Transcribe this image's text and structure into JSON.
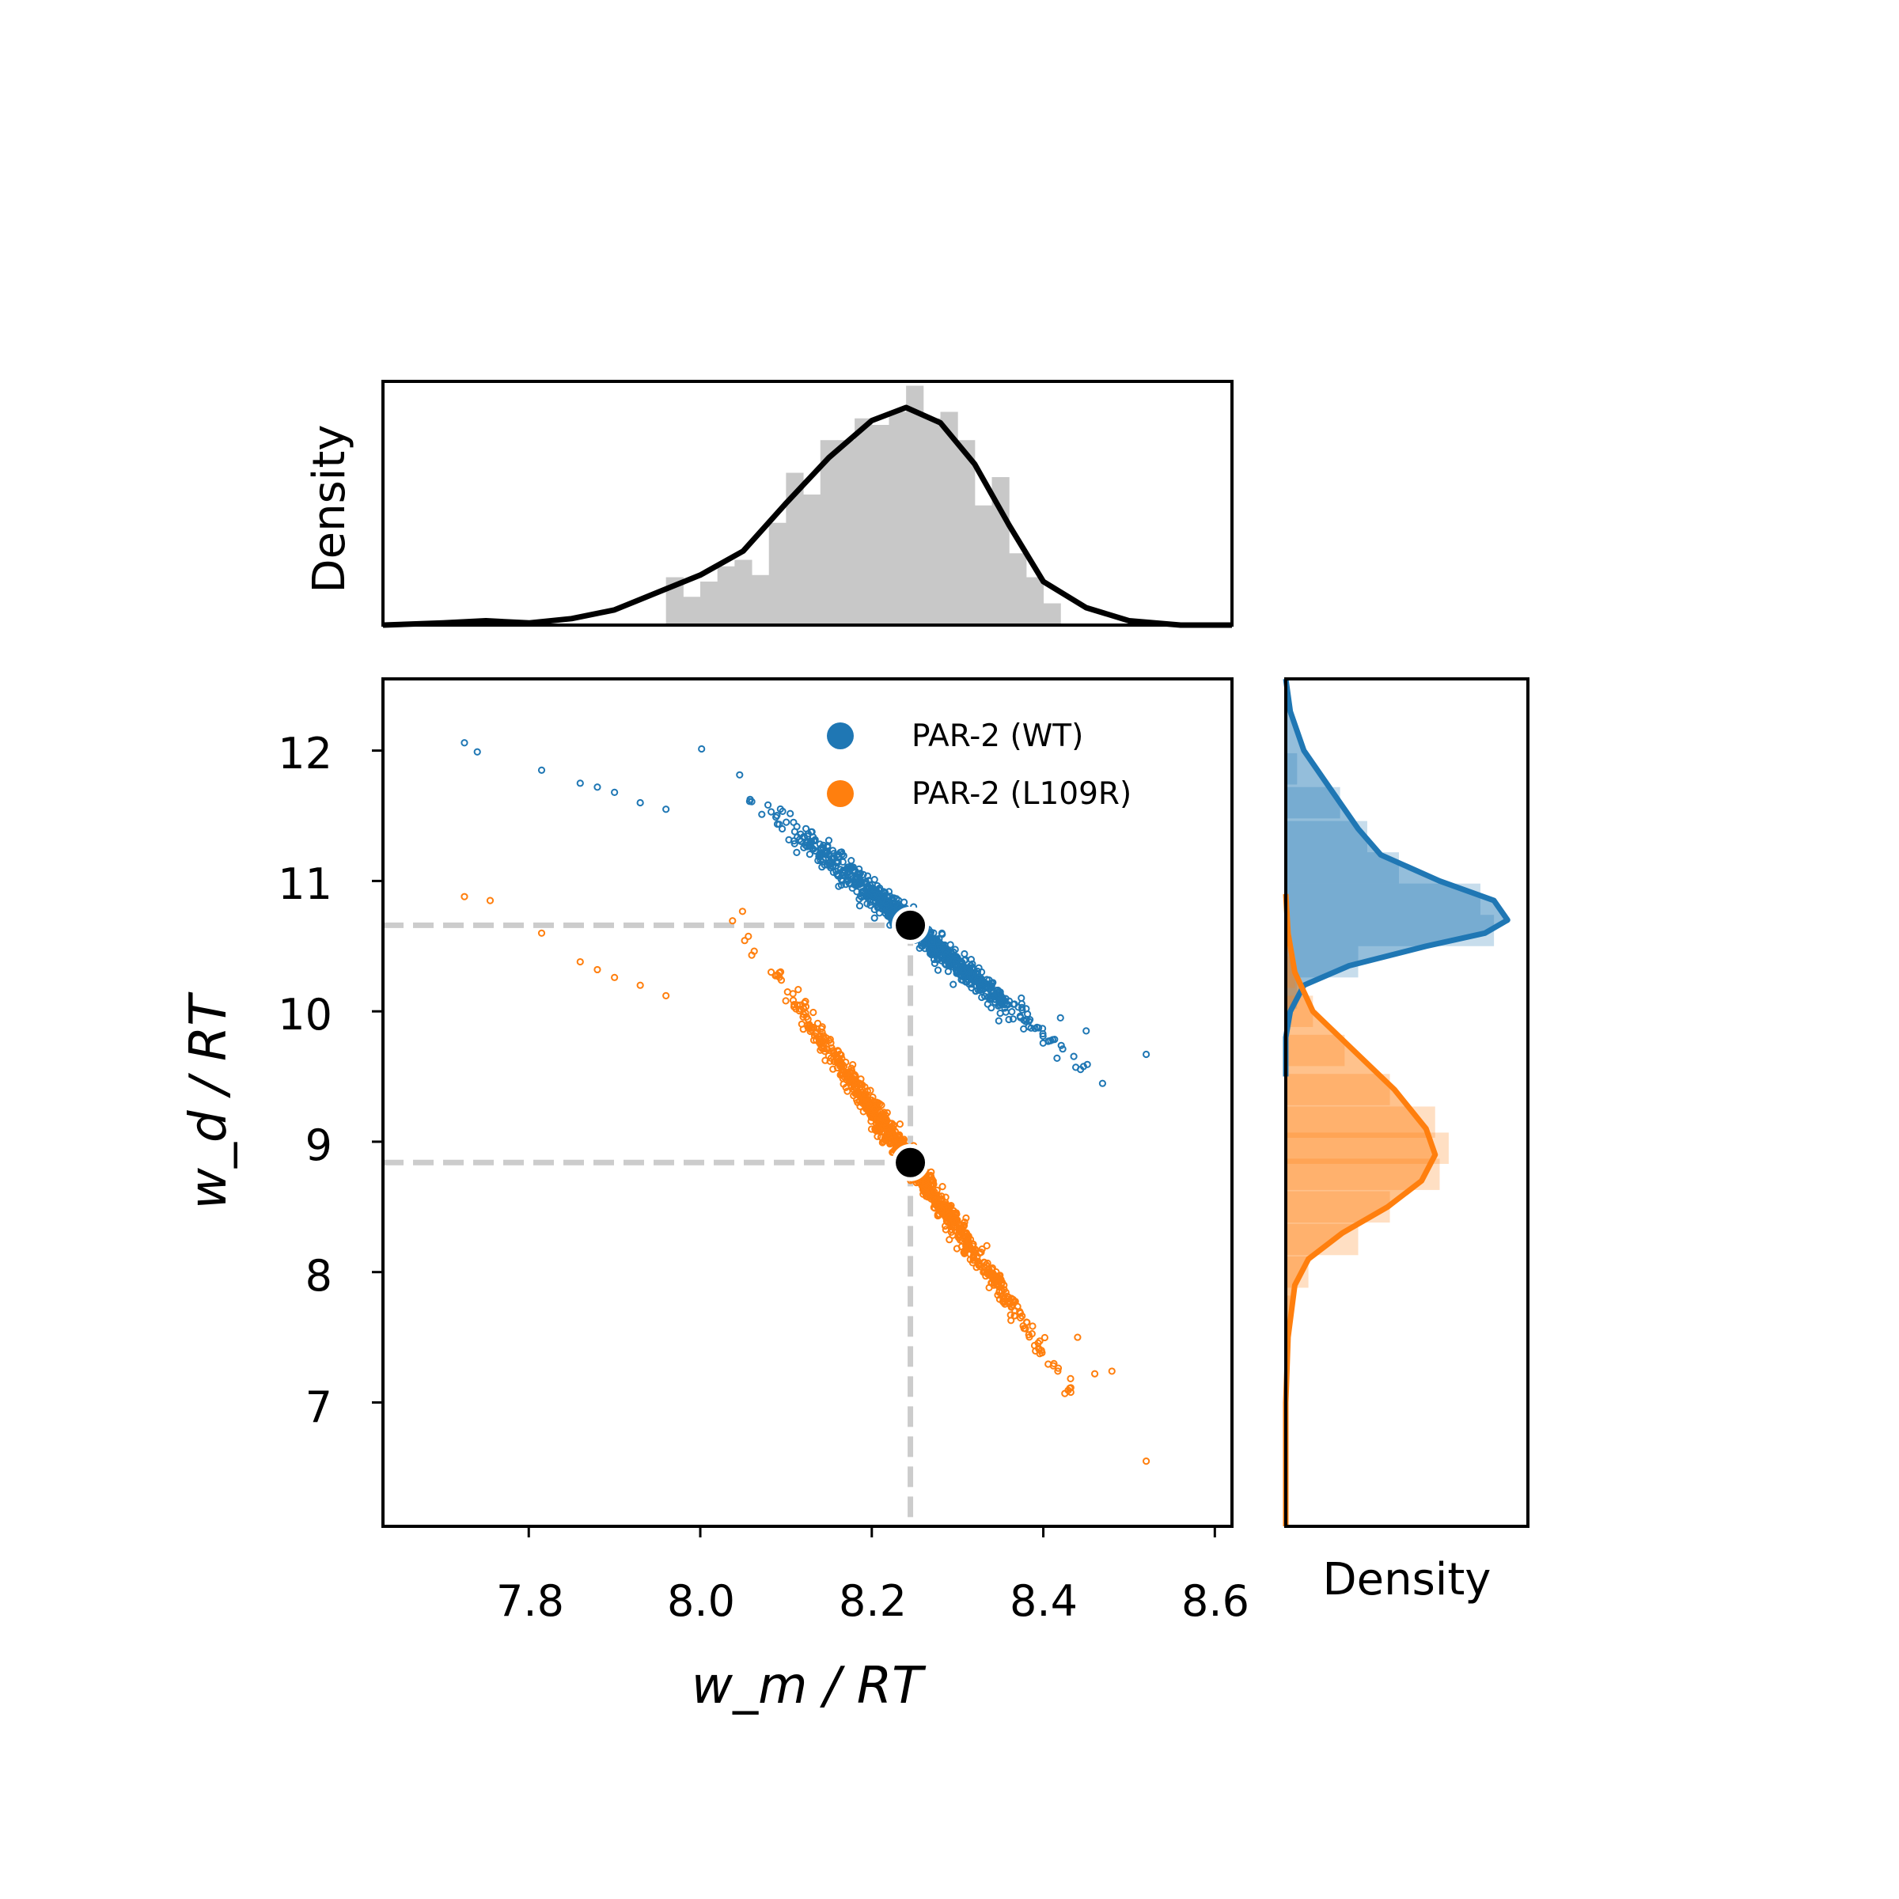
{
  "chart_data": {
    "type": "scatter",
    "main_axes": {
      "xlabel": "w_m / RT",
      "ylabel": "w_d / RT",
      "xlim": [
        7.63,
        8.62
      ],
      "ylim": [
        6.05,
        12.55
      ],
      "xticks": [
        "7.8",
        "8.0",
        "8.2",
        "8.4",
        "8.6"
      ],
      "yticks": [
        "7",
        "8",
        "9",
        "10",
        "11",
        "12"
      ],
      "legend_position": "top-right"
    },
    "series": [
      {
        "name": "PAR-2 (WT)",
        "color": "#1f77b4",
        "trend": {
          "intercept": 10.66,
          "slope": -5.4
        },
        "points": [
          [
            7.725,
            12.06
          ],
          [
            7.74,
            11.99
          ],
          [
            7.815,
            11.85
          ],
          [
            7.86,
            11.75
          ],
          [
            7.88,
            11.72
          ],
          [
            7.9,
            11.68
          ],
          [
            7.93,
            11.6
          ],
          [
            7.96,
            11.55
          ],
          [
            8.52,
            9.67
          ],
          [
            8.45,
            9.85
          ],
          [
            8.42,
            9.95
          ],
          [
            8.38,
            10.02
          ]
        ],
        "best_fit": {
          "x": 8.245,
          "y": 10.66
        }
      },
      {
        "name": "PAR-2 (L109R)",
        "color": "#ff7f0e",
        "trend": {
          "intercept": 8.84,
          "slope": -9.2
        },
        "points": [
          [
            7.725,
            10.88
          ],
          [
            7.755,
            10.85
          ],
          [
            7.815,
            10.6
          ],
          [
            7.86,
            10.38
          ],
          [
            7.88,
            10.32
          ],
          [
            7.9,
            10.26
          ],
          [
            7.93,
            10.2
          ],
          [
            7.96,
            10.12
          ],
          [
            8.52,
            6.55
          ],
          [
            8.48,
            7.24
          ],
          [
            8.46,
            7.22
          ],
          [
            8.44,
            7.5
          ]
        ],
        "best_fit": {
          "x": 8.245,
          "y": 8.84
        }
      }
    ],
    "reference_lines": {
      "x": 8.245,
      "y": [
        10.66,
        8.84
      ]
    },
    "top_marginal": {
      "ylabel": "Density",
      "hist_color": "#c8c8c8",
      "kde_color": "#000000",
      "kde": [
        [
          7.63,
          0.0
        ],
        [
          7.7,
          0.01
        ],
        [
          7.75,
          0.02
        ],
        [
          7.8,
          0.01
        ],
        [
          7.85,
          0.03
        ],
        [
          7.9,
          0.07
        ],
        [
          7.95,
          0.15
        ],
        [
          8.0,
          0.23
        ],
        [
          8.05,
          0.34
        ],
        [
          8.1,
          0.56
        ],
        [
          8.15,
          0.77
        ],
        [
          8.2,
          0.94
        ],
        [
          8.24,
          1.0
        ],
        [
          8.28,
          0.93
        ],
        [
          8.32,
          0.74
        ],
        [
          8.36,
          0.46
        ],
        [
          8.4,
          0.2
        ],
        [
          8.45,
          0.08
        ],
        [
          8.5,
          0.02
        ],
        [
          8.56,
          0.0
        ],
        [
          8.62,
          0.0
        ]
      ],
      "hist": [
        [
          7.96,
          0.22
        ],
        [
          7.98,
          0.13
        ],
        [
          8.0,
          0.2
        ],
        [
          8.02,
          0.27
        ],
        [
          8.04,
          0.3
        ],
        [
          8.06,
          0.23
        ],
        [
          8.08,
          0.47
        ],
        [
          8.1,
          0.7
        ],
        [
          8.12,
          0.6
        ],
        [
          8.14,
          0.85
        ],
        [
          8.16,
          0.85
        ],
        [
          8.18,
          0.95
        ],
        [
          8.2,
          0.92
        ],
        [
          8.22,
          0.98
        ],
        [
          8.24,
          1.1
        ],
        [
          8.26,
          0.95
        ],
        [
          8.28,
          0.98
        ],
        [
          8.3,
          0.85
        ],
        [
          8.32,
          0.55
        ],
        [
          8.34,
          0.68
        ],
        [
          8.36,
          0.33
        ],
        [
          8.38,
          0.22
        ],
        [
          8.4,
          0.1
        ]
      ]
    },
    "right_marginal": {
      "xlabel": "Density",
      "series": [
        {
          "name": "PAR-2 (WT)",
          "color": "#1f77b4",
          "kde": [
            [
              12.55,
              0.0
            ],
            [
              12.3,
              0.02
            ],
            [
              12.0,
              0.08
            ],
            [
              11.7,
              0.2
            ],
            [
              11.4,
              0.32
            ],
            [
              11.2,
              0.42
            ],
            [
              11.0,
              0.68
            ],
            [
              10.85,
              0.92
            ],
            [
              10.7,
              0.98
            ],
            [
              10.6,
              0.88
            ],
            [
              10.5,
              0.62
            ],
            [
              10.35,
              0.28
            ],
            [
              10.2,
              0.08
            ],
            [
              10.0,
              0.02
            ],
            [
              9.8,
              0.0
            ],
            [
              9.5,
              0.0
            ]
          ],
          "hist": [
            [
              11.86,
              0.05
            ],
            [
              11.6,
              0.24
            ],
            [
              11.34,
              0.36
            ],
            [
              11.1,
              0.5
            ],
            [
              10.86,
              0.86
            ],
            [
              10.62,
              0.92
            ],
            [
              10.38,
              0.32
            ],
            [
              10.14,
              0.05
            ]
          ]
        },
        {
          "name": "PAR-2 (L109R)",
          "color": "#ff7f0e",
          "kde": [
            [
              10.9,
              0.0
            ],
            [
              10.6,
              0.01
            ],
            [
              10.3,
              0.04
            ],
            [
              10.0,
              0.12
            ],
            [
              9.7,
              0.3
            ],
            [
              9.4,
              0.48
            ],
            [
              9.1,
              0.62
            ],
            [
              8.9,
              0.66
            ],
            [
              8.7,
              0.6
            ],
            [
              8.5,
              0.45
            ],
            [
              8.3,
              0.25
            ],
            [
              8.1,
              0.1
            ],
            [
              7.9,
              0.04
            ],
            [
              7.5,
              0.01
            ],
            [
              7.0,
              0.0
            ],
            [
              6.05,
              0.0
            ]
          ],
          "hist": [
            [
              10.3,
              0.04
            ],
            [
              10.0,
              0.12
            ],
            [
              9.7,
              0.26
            ],
            [
              9.4,
              0.46
            ],
            [
              9.15,
              0.66
            ],
            [
              8.95,
              0.72
            ],
            [
              8.75,
              0.68
            ],
            [
              8.5,
              0.46
            ],
            [
              8.25,
              0.32
            ],
            [
              8.0,
              0.1
            ],
            [
              7.7,
              0.02
            ]
          ]
        }
      ]
    }
  }
}
